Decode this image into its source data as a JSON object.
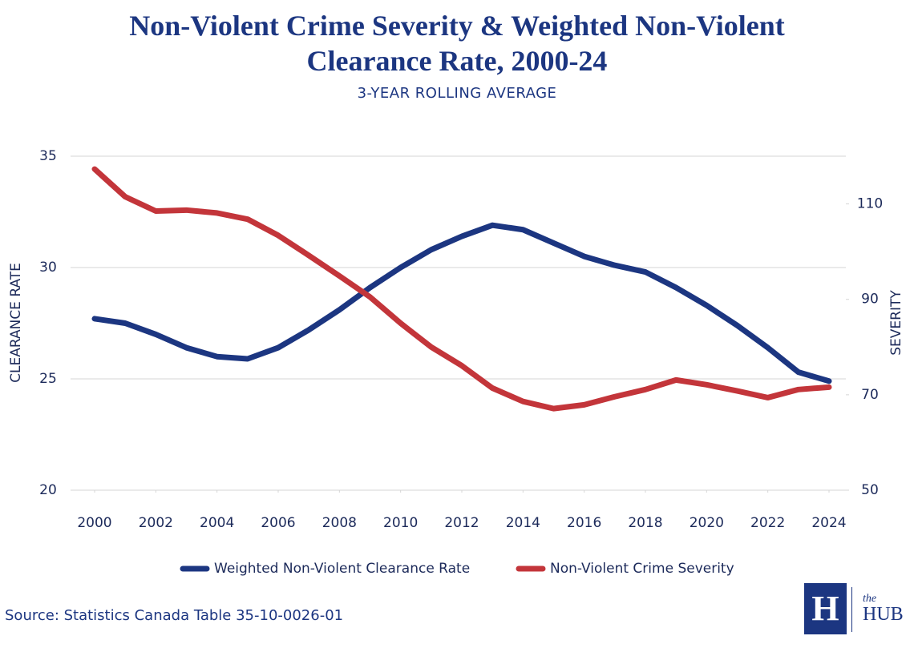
{
  "chart_data": {
    "type": "line",
    "title": "Non-Violent Crime Severity & Weighted Non-Violent Clearance Rate, 2000-24",
    "subtitle": "3-YEAR ROLLING AVERAGE",
    "y_label": "CLEARANCE RATE",
    "y2_label": "SEVERITY",
    "x": [
      2000,
      2001,
      2002,
      2003,
      2004,
      2005,
      2006,
      2007,
      2008,
      2009,
      2010,
      2011,
      2012,
      2013,
      2014,
      2015,
      2016,
      2017,
      2018,
      2019,
      2020,
      2021,
      2022,
      2023,
      2024
    ],
    "xlim": [
      2000,
      2024
    ],
    "xticks": [
      2000,
      2002,
      2004,
      2006,
      2008,
      2010,
      2012,
      2014,
      2016,
      2018,
      2020,
      2022,
      2024
    ],
    "ylim": [
      20,
      35
    ],
    "yticks": [
      20,
      25,
      30,
      35
    ],
    "y2lim": [
      50,
      120
    ],
    "y2ticks": [
      50,
      70,
      90,
      110
    ],
    "grid": true,
    "legend": "bottom",
    "series": [
      {
        "name": "Weighted Non-Violent Clearance Rate",
        "color": "#1c3681",
        "values": [
          27.7,
          27.5,
          27.0,
          26.4,
          26.0,
          25.9,
          26.4,
          27.2,
          28.1,
          29.1,
          30.0,
          30.8,
          31.4,
          31.9,
          31.7,
          31.1,
          30.5,
          30.1,
          29.8,
          29.1,
          28.3,
          27.4,
          26.4,
          25.3,
          24.9
        ]
      },
      {
        "name": "Non-Violent Crime Severity",
        "color": "#c3353a",
        "axis": "y2",
        "values": [
          117.3,
          111.5,
          108.5,
          108.7,
          108.1,
          106.8,
          103.4,
          99.2,
          94.9,
          90.5,
          85.0,
          80.0,
          76.1,
          71.4,
          68.6,
          67.1,
          67.9,
          69.6,
          71.1,
          73.1,
          72.1,
          70.8,
          69.4,
          71.1,
          71.6
        ]
      }
    ]
  },
  "source": "Source: Statistics Canada Table 35-10-0026-01",
  "logo": {
    "mark": "H",
    "small": "the",
    "name": "HUB"
  }
}
